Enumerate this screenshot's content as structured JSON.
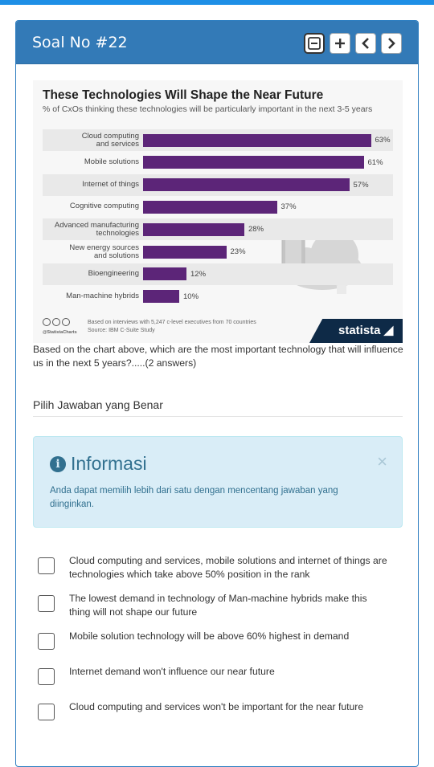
{
  "header": {
    "title": "Soal No #22",
    "buttons": [
      "minus-icon",
      "plus-icon",
      "chevron-left-icon",
      "chevron-right-icon"
    ]
  },
  "chart_data": {
    "type": "bar",
    "title": "These Technologies Will Shape the Near Future",
    "subtitle": "% of CxOs thinking these technologies will be particularly important in the next 3-5 years",
    "categories": [
      "Cloud computing\nand services",
      "Mobile solutions",
      "Internet of things",
      "Cognitive computing",
      "Advanced manufacturing\ntechnologies",
      "New energy sources\nand solutions",
      "Bioengineering",
      "Man-machine hybrids"
    ],
    "values": [
      63,
      61,
      57,
      37,
      28,
      23,
      12,
      10
    ],
    "value_labels": [
      "63%",
      "61%",
      "57%",
      "37%",
      "28%",
      "23%",
      "12%",
      "10%"
    ],
    "xlim": [
      0,
      70
    ],
    "footnote": "Based on interviews with 5,247 c-level executives from 70 countries",
    "source": "Source: IBM C-Suite Study",
    "credit": "@StatistaCharts",
    "brand": "statista",
    "bar_color": "#5c2578"
  },
  "question": {
    "text": "Based on the chart above, which are the most important technology that will influence us in the next 5 years?.....(2 answers)",
    "prompt": "Pilih Jawaban yang Benar"
  },
  "alert": {
    "title": "Informasi",
    "text": "Anda dapat memilih lebih dari satu dengan mencentang jawaban yang diinginkan.",
    "close": "×"
  },
  "options": [
    {
      "label": "Cloud computing and services, mobile solutions and internet of things are technologies which take above 50% position in the rank"
    },
    {
      "label": "The lowest demand in technology of Man-machine hybrids make this thing will not shape our future"
    },
    {
      "label": "Mobile solution technology will be above 60% highest in demand"
    },
    {
      "label": "Internet demand won't influence our near future"
    },
    {
      "label": "Cloud computing and services won't be important for the near future"
    }
  ],
  "colors": {
    "header": "#337ab7",
    "topbar": "#1e8fe6",
    "alert_bg": "#d9edf7",
    "alert_text": "#31708f"
  }
}
